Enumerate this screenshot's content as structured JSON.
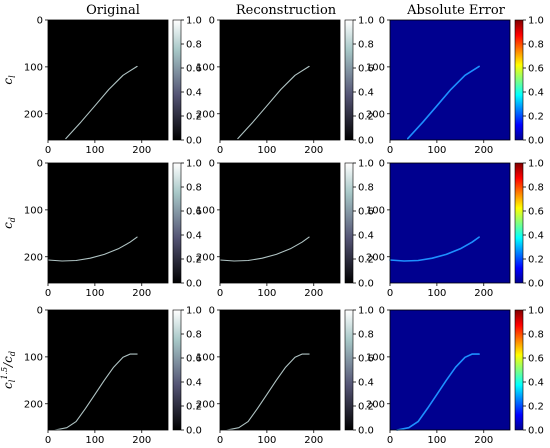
{
  "column_titles": [
    "Original",
    "Reconstruction",
    "Absolute Error"
  ],
  "row_labels": [
    "c_l",
    "c_d",
    "c_l^1.5 / c_d"
  ],
  "colors": {
    "image_background": "#000000",
    "error_background": "#00008f",
    "curve_gray": "#b0c4c4",
    "error_curve": "#1e90ff"
  },
  "chart_data": [
    {
      "type": "heatmap",
      "panel": "row-cl-original",
      "title": "Original",
      "colormap": "bone",
      "xlim": [
        0,
        256
      ],
      "ylim": [
        256,
        0
      ],
      "xticks": [
        0,
        100,
        200
      ],
      "yticks": [
        0,
        100,
        200
      ],
      "colorbar": {
        "range": [
          0.0,
          1.0
        ],
        "ticks": [
          "0.0",
          "0.2",
          "0.4",
          "0.6",
          "0.8",
          "1.0"
        ]
      },
      "curve": {
        "x": [
          38,
          70,
          100,
          130,
          160,
          190
        ],
        "y": [
          253,
          218,
          183,
          148,
          118,
          99
        ]
      }
    },
    {
      "type": "heatmap",
      "panel": "row-cl-reconstruction",
      "title": "Reconstruction",
      "colormap": "bone",
      "xlim": [
        0,
        256
      ],
      "ylim": [
        256,
        0
      ],
      "xticks": [
        0,
        100,
        200
      ],
      "yticks": [
        0,
        100,
        200
      ],
      "colorbar": {
        "range": [
          0.0,
          1.0
        ],
        "ticks": [
          "0.0",
          "0.2",
          "0.4",
          "0.6",
          "0.8",
          "1.0"
        ]
      },
      "curve": {
        "x": [
          38,
          70,
          100,
          130,
          160,
          190
        ],
        "y": [
          253,
          218,
          183,
          148,
          118,
          99
        ]
      }
    },
    {
      "type": "heatmap",
      "panel": "row-cl-error",
      "title": "Absolute Error",
      "colormap": "jet",
      "xlim": [
        0,
        256
      ],
      "ylim": [
        256,
        0
      ],
      "xticks": [
        0,
        100,
        200
      ],
      "yticks": [
        0,
        100,
        200
      ],
      "colorbar": {
        "range": [
          0.0,
          1.0
        ],
        "ticks": [
          "0.0",
          "0.2",
          "0.4",
          "0.6",
          "0.8",
          "1.0"
        ]
      },
      "curve": {
        "x": [
          38,
          70,
          100,
          130,
          160,
          190
        ],
        "y": [
          253,
          218,
          183,
          148,
          118,
          99
        ]
      }
    },
    {
      "type": "heatmap",
      "panel": "row-cd-original",
      "colormap": "bone",
      "xlim": [
        0,
        256
      ],
      "ylim": [
        256,
        0
      ],
      "xticks": [
        0,
        100,
        200
      ],
      "yticks": [
        0,
        100,
        200
      ],
      "colorbar": {
        "range": [
          0.0,
          1.0
        ],
        "ticks": [
          "0.0",
          "0.2",
          "0.4",
          "0.6",
          "0.8",
          "1.0"
        ]
      },
      "curve": {
        "x": [
          0,
          30,
          60,
          90,
          120,
          150,
          175,
          190
        ],
        "y": [
          207,
          209,
          208,
          203,
          195,
          183,
          169,
          158
        ]
      }
    },
    {
      "type": "heatmap",
      "panel": "row-cd-reconstruction",
      "colormap": "bone",
      "xlim": [
        0,
        256
      ],
      "ylim": [
        256,
        0
      ],
      "xticks": [
        0,
        100,
        200
      ],
      "yticks": [
        0,
        100,
        200
      ],
      "colorbar": {
        "range": [
          0.0,
          1.0
        ],
        "ticks": [
          "0.0",
          "0.2",
          "0.4",
          "0.6",
          "0.8",
          "1.0"
        ]
      },
      "curve": {
        "x": [
          0,
          30,
          60,
          90,
          120,
          150,
          175,
          190
        ],
        "y": [
          207,
          209,
          208,
          203,
          195,
          183,
          169,
          158
        ]
      }
    },
    {
      "type": "heatmap",
      "panel": "row-cd-error",
      "colormap": "jet",
      "xlim": [
        0,
        256
      ],
      "ylim": [
        256,
        0
      ],
      "xticks": [
        0,
        100,
        200
      ],
      "yticks": [
        0,
        100,
        200
      ],
      "colorbar": {
        "range": [
          0.0,
          1.0
        ],
        "ticks": [
          "0.0",
          "0.2",
          "0.4",
          "0.6",
          "0.8",
          "1.0"
        ]
      },
      "curve": {
        "x": [
          0,
          30,
          60,
          90,
          120,
          150,
          175,
          190
        ],
        "y": [
          207,
          209,
          208,
          203,
          195,
          183,
          169,
          158
        ]
      }
    },
    {
      "type": "heatmap",
      "panel": "row-ratio-original",
      "colormap": "bone",
      "xlim": [
        0,
        256
      ],
      "ylim": [
        256,
        0
      ],
      "xticks": [
        0,
        100,
        200
      ],
      "yticks": [
        0,
        100,
        200
      ],
      "colorbar": {
        "range": [
          0.0,
          1.0
        ],
        "ticks": [
          "0.0",
          "0.2",
          "0.4",
          "0.6",
          "0.8",
          "1.0"
        ]
      },
      "curve": {
        "x": [
          15,
          40,
          60,
          80,
          100,
          120,
          140,
          160,
          175,
          190
        ],
        "y": [
          256,
          251,
          238,
          210,
          180,
          150,
          122,
          101,
          94,
          94
        ]
      }
    },
    {
      "type": "heatmap",
      "panel": "row-ratio-reconstruction",
      "colormap": "bone",
      "xlim": [
        0,
        256
      ],
      "ylim": [
        256,
        0
      ],
      "xticks": [
        0,
        100,
        200
      ],
      "yticks": [
        0,
        100,
        200
      ],
      "colorbar": {
        "range": [
          0.0,
          1.0
        ],
        "ticks": [
          "0.0",
          "0.2",
          "0.4",
          "0.6",
          "0.8",
          "1.0"
        ]
      },
      "curve": {
        "x": [
          15,
          40,
          60,
          80,
          100,
          120,
          140,
          160,
          175,
          190
        ],
        "y": [
          256,
          251,
          238,
          210,
          180,
          150,
          122,
          101,
          94,
          94
        ]
      }
    },
    {
      "type": "heatmap",
      "panel": "row-ratio-error",
      "colormap": "jet",
      "xlim": [
        0,
        256
      ],
      "ylim": [
        256,
        0
      ],
      "xticks": [
        0,
        100,
        200
      ],
      "yticks": [
        0,
        100,
        200
      ],
      "colorbar": {
        "range": [
          0.0,
          1.0
        ],
        "ticks": [
          "0.0",
          "0.2",
          "0.4",
          "0.6",
          "0.8",
          "1.0"
        ]
      },
      "curve": {
        "x": [
          15,
          40,
          60,
          80,
          100,
          120,
          140,
          160,
          175,
          190
        ],
        "y": [
          256,
          251,
          238,
          210,
          180,
          150,
          122,
          101,
          94,
          94
        ]
      }
    }
  ]
}
